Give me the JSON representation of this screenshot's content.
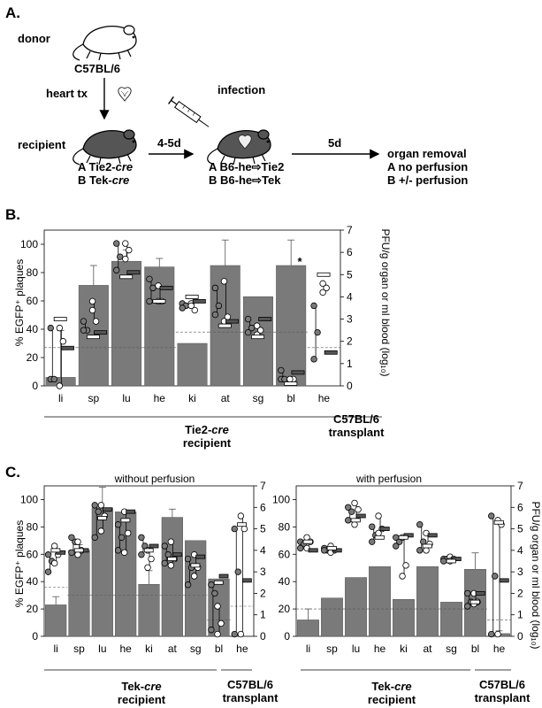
{
  "panels": {
    "A": {
      "letter": "A.",
      "donor_label": "donor",
      "donor_strain": "C57BL/6",
      "heart_tx_label": "heart tx",
      "recipient_label": "recipient",
      "recipient_lines": [
        {
          "prefix": "A Tie2-",
          "italic": "cre"
        },
        {
          "prefix": "B Tek-",
          "italic": "cre"
        }
      ],
      "interval_1": "4-5d",
      "infection_label": "infection",
      "infection_lines": [
        "A B6-he⇨Tie2",
        "B B6-he⇨Tek"
      ],
      "interval_2": "5d",
      "outcome_lines": [
        "organ removal",
        "A no perfusion",
        "B +/- perfusion"
      ]
    },
    "B": {
      "letter": "B.",
      "ylabel_left": "% EGFP⁺ plaques",
      "ylabel_right": "PFU/g organ or ml blood (log₁₀)",
      "left_ticks": [
        "0",
        "20",
        "40",
        "60",
        "80",
        "100"
      ],
      "right_ticks": [
        "0",
        "1",
        "2",
        "3",
        "4",
        "5",
        "6",
        "7"
      ],
      "categories": [
        "li",
        "sp",
        "lu",
        "he",
        "ki",
        "at",
        "sg",
        "bl",
        "he"
      ],
      "asterisk": "*",
      "group_label_1": {
        "prefix": "Tie2-",
        "italic": "cre",
        "line2": "recipient"
      },
      "group_label_2": {
        "line1": "C57BL/6",
        "line2": "transplant"
      }
    },
    "C": {
      "letter": "C.",
      "left_subtitle": "without perfusion",
      "right_subtitle": "with perfusion",
      "ylabel_left": "% EGFP⁺ plaques",
      "ylabel_right": "PFU/g organ or ml blood (log₁₀)",
      "left_ticks": [
        "0",
        "20",
        "40",
        "60",
        "80",
        "100"
      ],
      "right_ticks": [
        "0",
        "1",
        "2",
        "3",
        "4",
        "5",
        "6",
        "7"
      ],
      "categories": [
        "li",
        "sp",
        "lu",
        "he",
        "ki",
        "at",
        "sg",
        "bl",
        "he"
      ],
      "group_label_1": {
        "prefix": "Tek-",
        "italic": "cre",
        "line2": "recipient"
      },
      "group_label_2": {
        "line1": "C57BL/6",
        "line2": "transplant"
      }
    }
  },
  "colors": {
    "bar": "#7a7a7a",
    "dot_dark": "#7a7a7a",
    "dot_light": "#ffffff",
    "mean_dark": "#555555"
  },
  "chart_data": [
    {
      "id": "B",
      "type": "bar",
      "categories": [
        "li",
        "sp",
        "lu",
        "he",
        "ki",
        "at",
        "sg",
        "bl",
        "he"
      ],
      "ylim_left": [
        0,
        110
      ],
      "ylim_right": [
        0,
        7
      ],
      "bars": [
        6,
        71,
        88,
        84,
        30,
        85,
        63,
        85,
        0
      ],
      "bar_err": [
        33,
        14,
        8,
        6,
        0,
        18,
        0,
        18,
        0
      ],
      "dashed_left": [
        27,
        27,
        27,
        27,
        38,
        38,
        38,
        38,
        27
      ],
      "log_dark": [
        [
          0.3,
          0.3,
          2.6
        ],
        [
          2.9,
          2.5,
          2.5
        ],
        [
          6.4,
          5.8,
          5.2
        ],
        [
          4.8,
          4.4,
          3.8
        ],
        [
          3.7,
          3.6,
          3.5
        ],
        [
          4.4,
          3.6,
          3.2
        ],
        [
          3.0,
          2.6,
          2.4
        ],
        [
          0.3,
          0.3,
          0.7
        ],
        [
          3.6,
          2.4,
          1.2
        ]
      ],
      "log_light": [
        [
          2.6,
          2.0,
          0.0
        ],
        [
          3.8,
          2.9,
          3.4
        ],
        [
          6.4,
          6.1,
          5.7
        ],
        [
          4.5,
          3.8,
          3.8
        ],
        [
          3.7,
          3.4,
          3.6
        ],
        [
          4.7,
          3.1,
          2.9
        ],
        [
          2.7,
          2.5,
          2.3
        ],
        [
          0.3,
          0.3,
          0.3
        ],
        [
          4.6,
          4.4,
          4.2
        ]
      ],
      "log_mean_dark": [
        1.7,
        2.4,
        5.1,
        4.4,
        3.8,
        2.9,
        3.0,
        0.6,
        1.5
      ],
      "log_mean_light": [
        3.0,
        2.2,
        4.9,
        3.8,
        4.0,
        2.7,
        2.2,
        0.1,
        5.0
      ]
    },
    {
      "id": "C-left",
      "type": "bar",
      "categories": [
        "li",
        "sp",
        "lu",
        "he",
        "ki",
        "at",
        "sg",
        "bl",
        "he"
      ],
      "ylim_left": [
        0,
        110
      ],
      "ylim_right": [
        0,
        7
      ],
      "bars": [
        23,
        63,
        94,
        91,
        38,
        87,
        70,
        42,
        0
      ],
      "bar_err": [
        6,
        4,
        15,
        0,
        10,
        6,
        0,
        0,
        0
      ],
      "dashed_left": [
        36,
        30,
        30,
        30,
        30,
        30,
        30,
        12,
        22
      ],
      "log_dark": [
        [
          3.8,
          3.5,
          3.0
        ],
        [
          3.9,
          4.4,
          4.6
        ],
        [
          6.1,
          5.8,
          4.6
        ],
        [
          5.2,
          4.6,
          4.0
        ],
        [
          4.6,
          4.2,
          3.8
        ],
        [
          4.2,
          3.8,
          3.4
        ],
        [
          3.6,
          3.2,
          2.4
        ],
        [
          2.4,
          2.0,
          0.3
        ],
        [
          0.1,
          3.0,
          5.0
        ]
      ],
      "log_light": [
        [
          4.2,
          3.8,
          3.4
        ],
        [
          4.4,
          4.0,
          3.8
        ],
        [
          6.1,
          5.6,
          4.9
        ],
        [
          5.8,
          4.8,
          3.9
        ],
        [
          4.0,
          3.6,
          3.2
        ],
        [
          4.4,
          3.6,
          3.3
        ],
        [
          3.8,
          3.2,
          2.8
        ],
        [
          1.4,
          0.6,
          0.1
        ],
        [
          5.6,
          5.0,
          0.1
        ]
      ],
      "log_mean_dark": [
        3.9,
        4.0,
        5.9,
        5.8,
        4.2,
        3.8,
        3.7,
        2.8,
        2.6
      ],
      "log_mean_light": [
        4.0,
        4.0,
        5.5,
        5.4,
        4.0,
        3.6,
        3.3,
        2.5,
        5.2
      ]
    },
    {
      "id": "C-right",
      "type": "bar",
      "categories": [
        "li",
        "sp",
        "lu",
        "he",
        "ki",
        "at",
        "sg",
        "bl",
        "he"
      ],
      "ylim_left": [
        0,
        110
      ],
      "ylim_right": [
        0,
        7
      ],
      "bars": [
        12,
        28,
        43,
        51,
        27,
        51,
        25,
        49,
        2
      ],
      "bar_err": [
        8,
        0,
        0,
        0,
        0,
        0,
        0,
        12,
        2
      ],
      "dashed_left": [
        20,
        20,
        20,
        20,
        20,
        20,
        20,
        20,
        12
      ],
      "log_dark": [
        [
          4.4,
          4.3,
          4.1
        ],
        [
          4.1,
          4.0,
          4.0
        ],
        [
          6.0,
          5.8,
          5.4
        ],
        [
          5.1,
          4.7,
          4.4
        ],
        [
          4.6,
          4.4,
          4.2
        ],
        [
          5.2,
          4.4,
          4.0
        ],
        [
          3.6,
          3.6,
          3.5
        ],
        [
          2.0,
          1.6,
          1.4
        ],
        [
          5.6,
          2.8,
          0.1
        ]
      ],
      "log_light": [
        [
          4.6,
          4.4,
          4.1
        ],
        [
          4.2,
          4.0,
          3.9
        ],
        [
          6.2,
          5.9,
          5.2
        ],
        [
          5.6,
          5.0,
          4.8
        ],
        [
          4.6,
          3.3,
          2.8
        ],
        [
          4.8,
          4.3,
          4.0
        ],
        [
          3.7,
          3.6,
          3.5
        ],
        [
          2.0,
          1.6,
          1.5
        ],
        [
          5.4,
          5.2,
          0.1
        ]
      ],
      "log_mean_dark": [
        4.0,
        4.0,
        5.6,
        5.0,
        4.7,
        4.7,
        3.6,
        2.0,
        2.6
      ],
      "log_mean_light": [
        4.4,
        4.1,
        5.4,
        4.6,
        4.6,
        4.2,
        3.5,
        1.6,
        5.3
      ]
    }
  ]
}
